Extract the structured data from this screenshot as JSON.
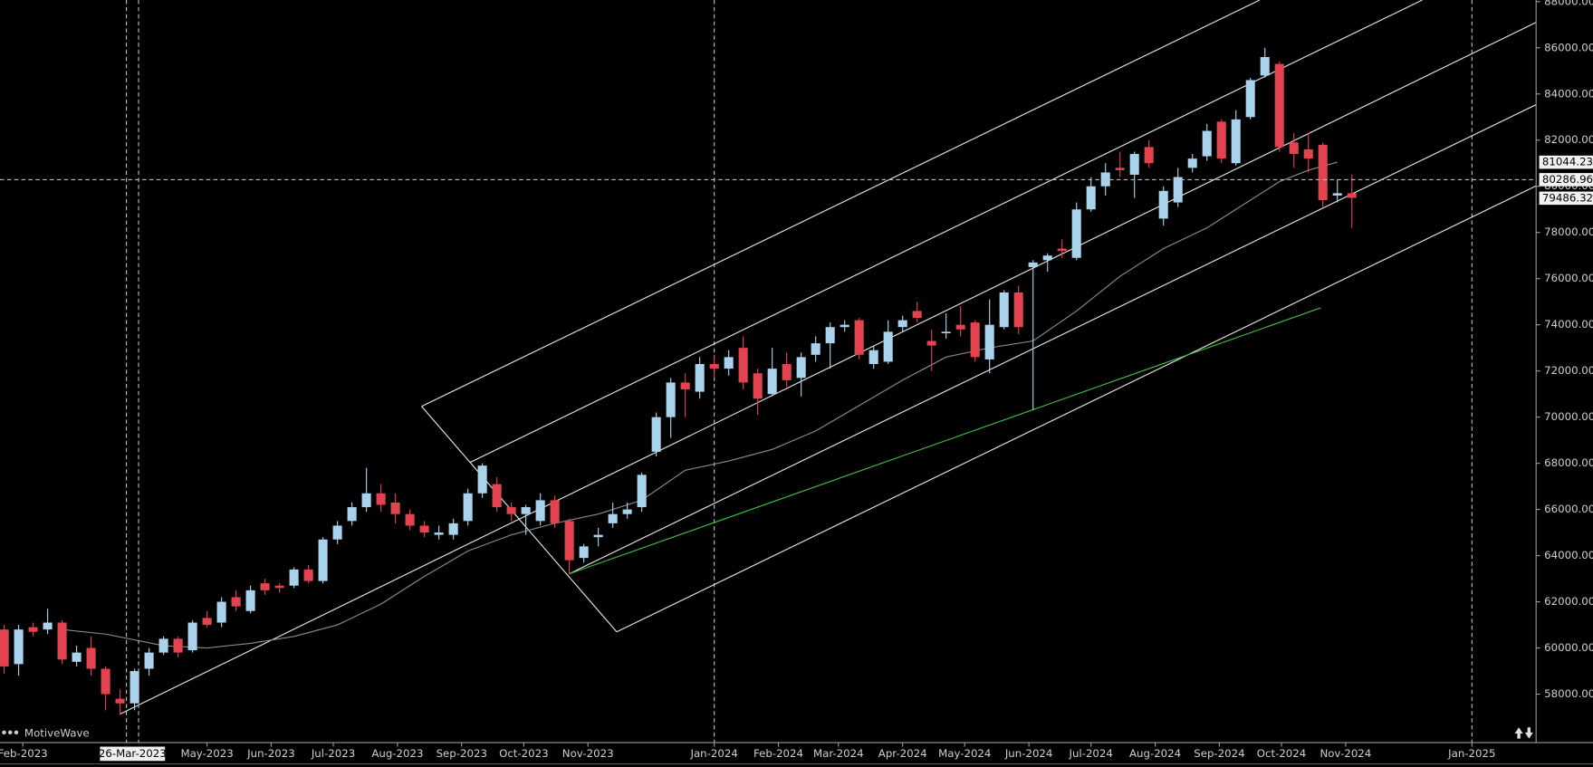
{
  "brand": "MotiveWave",
  "chart_data": {
    "type": "candlestick",
    "up_color": "#a9d2ec",
    "down_color": "#e2434f",
    "xlim": [
      "2023-01-21",
      "2025-02-01"
    ],
    "ylim": [
      55900,
      88070
    ],
    "xticks": [
      {
        "value": "2023-02-01",
        "label": "Feb-2023"
      },
      {
        "value": "2023-05-01",
        "label": "May-2023"
      },
      {
        "value": "2023-06-01",
        "label": "Jun-2023"
      },
      {
        "value": "2023-07-01",
        "label": "Jul-2023"
      },
      {
        "value": "2023-08-01",
        "label": "Aug-2023"
      },
      {
        "value": "2023-09-01",
        "label": "Sep-2023"
      },
      {
        "value": "2023-10-01",
        "label": "Oct-2023"
      },
      {
        "value": "2023-11-01",
        "label": "Nov-2023"
      },
      {
        "value": "2024-01-01",
        "label": "Jan-2024"
      },
      {
        "value": "2024-02-01",
        "label": "Feb-2024"
      },
      {
        "value": "2024-03-01",
        "label": "Mar-2024"
      },
      {
        "value": "2024-04-01",
        "label": "Apr-2024"
      },
      {
        "value": "2024-05-01",
        "label": "May-2024"
      },
      {
        "value": "2024-06-01",
        "label": "Jun-2024"
      },
      {
        "value": "2024-07-01",
        "label": "Jul-2024"
      },
      {
        "value": "2024-08-01",
        "label": "Aug-2024"
      },
      {
        "value": "2024-09-01",
        "label": "Sep-2024"
      },
      {
        "value": "2024-10-01",
        "label": "Oct-2024"
      },
      {
        "value": "2024-11-01",
        "label": "Nov-2024"
      },
      {
        "value": "2025-01-01",
        "label": "Jan-2025"
      }
    ],
    "yticks": [
      {
        "value": 58000,
        "label": "58000.00"
      },
      {
        "value": 60000,
        "label": "60000.00"
      },
      {
        "value": 62000,
        "label": "62000.00"
      },
      {
        "value": 64000,
        "label": "64000.00"
      },
      {
        "value": 66000,
        "label": "66000.00"
      },
      {
        "value": 68000,
        "label": "68000.00"
      },
      {
        "value": 70000,
        "label": "70000.00"
      },
      {
        "value": 72000,
        "label": "72000.00"
      },
      {
        "value": 74000,
        "label": "74000.00"
      },
      {
        "value": 76000,
        "label": "76000.00"
      },
      {
        "value": 78000,
        "label": "78000.00"
      },
      {
        "value": 80000,
        "label": "80000.00"
      },
      {
        "value": 82000,
        "label": "82000.00"
      },
      {
        "value": 84000,
        "label": "84000.00"
      },
      {
        "value": 86000,
        "label": "86000.00"
      },
      {
        "value": 88000,
        "label": "88000.00"
      }
    ],
    "x": [
      "2023-01-23",
      "2023-01-30",
      "2023-02-06",
      "2023-02-13",
      "2023-02-20",
      "2023-02-27",
      "2023-03-06",
      "2023-03-13",
      "2023-03-20",
      "2023-03-27",
      "2023-04-03",
      "2023-04-10",
      "2023-04-17",
      "2023-04-24",
      "2023-05-01",
      "2023-05-08",
      "2023-05-15",
      "2023-05-22",
      "2023-05-29",
      "2023-06-05",
      "2023-06-12",
      "2023-06-19",
      "2023-06-26",
      "2023-07-03",
      "2023-07-10",
      "2023-07-17",
      "2023-07-24",
      "2023-07-31",
      "2023-08-07",
      "2023-08-14",
      "2023-08-21",
      "2023-08-28",
      "2023-09-04",
      "2023-09-11",
      "2023-09-18",
      "2023-09-25",
      "2023-10-02",
      "2023-10-09",
      "2023-10-16",
      "2023-10-23",
      "2023-10-30",
      "2023-11-06",
      "2023-11-13",
      "2023-11-20",
      "2023-11-27",
      "2023-12-04",
      "2023-12-11",
      "2023-12-18",
      "2023-12-25",
      "2024-01-01",
      "2024-01-08",
      "2024-01-15",
      "2024-01-22",
      "2024-01-29",
      "2024-02-05",
      "2024-02-12",
      "2024-02-19",
      "2024-02-26",
      "2024-03-04",
      "2024-03-11",
      "2024-03-18",
      "2024-03-25",
      "2024-04-01",
      "2024-04-08",
      "2024-04-15",
      "2024-04-22",
      "2024-04-29",
      "2024-05-06",
      "2024-05-13",
      "2024-05-20",
      "2024-05-27",
      "2024-06-03",
      "2024-06-10",
      "2024-06-17",
      "2024-06-24",
      "2024-07-01",
      "2024-07-08",
      "2024-07-15",
      "2024-07-22",
      "2024-07-29",
      "2024-08-05",
      "2024-08-12",
      "2024-08-19",
      "2024-08-26",
      "2024-09-02",
      "2024-09-09",
      "2024-09-16",
      "2024-09-23",
      "2024-09-30",
      "2024-10-07",
      "2024-10-14",
      "2024-10-21",
      "2024-10-28",
      "2024-11-04"
    ],
    "open": [
      60800,
      59300,
      60900,
      60800,
      61100,
      59400,
      60000,
      59100,
      57800,
      57600,
      59100,
      59800,
      60400,
      59900,
      61300,
      61100,
      62200,
      61600,
      62800,
      62700,
      62700,
      63400,
      62900,
      64700,
      65500,
      66100,
      66700,
      66300,
      65800,
      65300,
      64900,
      64900,
      65500,
      66700,
      67100,
      66100,
      65800,
      65500,
      66400,
      65500,
      63900,
      64800,
      65400,
      65800,
      66100,
      68500,
      70000,
      71500,
      71100,
      72300,
      72100,
      73000,
      71900,
      71000,
      72300,
      71700,
      72700,
      73200,
      73900,
      74200,
      72300,
      72400,
      73900,
      74600,
      73300,
      73700,
      74000,
      74100,
      72500,
      73900,
      75400,
      76500,
      76800,
      77300,
      76900,
      79000,
      80000,
      80800,
      80500,
      81700,
      78600,
      79300,
      80800,
      81300,
      82800,
      81000,
      83000,
      84800,
      85300,
      81900,
      81600,
      81800,
      79600,
      79700
    ],
    "high": [
      61000,
      61000,
      61100,
      61700,
      61200,
      60100,
      60500,
      59200,
      58200,
      59100,
      60000,
      60500,
      60500,
      61200,
      61600,
      62200,
      62500,
      62700,
      63000,
      62800,
      63500,
      63600,
      64800,
      65500,
      66300,
      67800,
      67100,
      66700,
      66000,
      65500,
      65300,
      65600,
      66900,
      68000,
      67400,
      66300,
      66200,
      66700,
      66600,
      65600,
      64500,
      65200,
      66300,
      66300,
      67600,
      70200,
      71700,
      71900,
      72600,
      72700,
      72900,
      73500,
      72100,
      73000,
      72800,
      72800,
      73500,
      74100,
      74200,
      74300,
      73100,
      74200,
      74400,
      75000,
      73800,
      74500,
      74800,
      74200,
      75100,
      75500,
      75700,
      76800,
      77100,
      77700,
      79300,
      80400,
      81000,
      81500,
      81500,
      82000,
      80000,
      80800,
      81400,
      82700,
      82900,
      83300,
      84700,
      86000,
      85400,
      82300,
      82300,
      81900,
      80300,
      80500
    ],
    "low": [
      58900,
      58800,
      60500,
      60600,
      59300,
      59200,
      58800,
      57300,
      57100,
      57300,
      58800,
      59700,
      59600,
      59800,
      60900,
      60900,
      61600,
      61500,
      62300,
      62400,
      62600,
      62800,
      62800,
      64500,
      65300,
      65900,
      65900,
      65400,
      65100,
      64800,
      64700,
      64700,
      65300,
      66500,
      65900,
      65500,
      64900,
      65300,
      65200,
      63200,
      63700,
      64400,
      65200,
      65600,
      65900,
      68300,
      69100,
      70000,
      70800,
      71700,
      71800,
      71200,
      70100,
      70900,
      71300,
      70900,
      72400,
      72100,
      73700,
      72500,
      72100,
      72300,
      73700,
      74100,
      72000,
      73400,
      73500,
      72400,
      71900,
      73800,
      73600,
      70300,
      76300,
      76900,
      76800,
      78900,
      79600,
      80400,
      79500,
      80800,
      78300,
      79100,
      80600,
      81100,
      81000,
      80900,
      82900,
      84700,
      81500,
      80800,
      80600,
      79100,
      79300,
      78200
    ],
    "close": [
      59200,
      60800,
      60700,
      61100,
      59500,
      59800,
      59100,
      58000,
      57600,
      59000,
      59800,
      60400,
      59800,
      61100,
      61000,
      62000,
      61800,
      62500,
      62500,
      62600,
      63400,
      62900,
      64700,
      65300,
      66100,
      66700,
      66200,
      65800,
      65300,
      65000,
      65000,
      65400,
      66700,
      67900,
      66100,
      65800,
      66100,
      66400,
      65400,
      63800,
      64400,
      64900,
      65800,
      66000,
      67500,
      70000,
      71500,
      71200,
      72300,
      72100,
      72600,
      71500,
      70800,
      72100,
      71600,
      72600,
      73200,
      73900,
      74000,
      72700,
      72900,
      73700,
      74200,
      74300,
      73100,
      73700,
      73800,
      72600,
      74000,
      75400,
      73900,
      76700,
      77000,
      77200,
      79000,
      80000,
      80600,
      80700,
      81400,
      81000,
      79800,
      80400,
      81200,
      82400,
      81200,
      82900,
      84600,
      85600,
      81700,
      81400,
      81200,
      79400,
      79700,
      79500
    ],
    "moving_average": {
      "color": "#8c8c8c",
      "x": [
        "2023-02-20",
        "2023-03-13",
        "2023-04-10",
        "2023-05-01",
        "2023-05-22",
        "2023-06-12",
        "2023-07-03",
        "2023-07-24",
        "2023-08-14",
        "2023-09-04",
        "2023-09-25",
        "2023-10-16",
        "2023-11-06",
        "2023-11-27",
        "2023-12-18",
        "2024-01-08",
        "2024-01-29",
        "2024-02-19",
        "2024-03-11",
        "2024-04-01",
        "2024-04-22",
        "2024-05-13",
        "2024-06-03",
        "2024-06-24",
        "2024-07-15",
        "2024-08-05",
        "2024-08-26",
        "2024-09-16",
        "2024-09-30",
        "2024-10-14",
        "2024-10-28"
      ],
      "values": [
        60800,
        60600,
        60100,
        60000,
        60200,
        60500,
        61000,
        61900,
        63100,
        64200,
        64900,
        65400,
        65800,
        66400,
        67700,
        68100,
        68600,
        69400,
        70500,
        71600,
        72600,
        73000,
        73300,
        74600,
        76100,
        77300,
        78200,
        79400,
        80200,
        80700,
        81044.23
      ]
    },
    "price_labels": [
      81044.23,
      80286.96,
      79486.32
    ],
    "cursor_date": {
      "value": "2023-03-26",
      "label": "26-Mar-2023"
    }
  }
}
